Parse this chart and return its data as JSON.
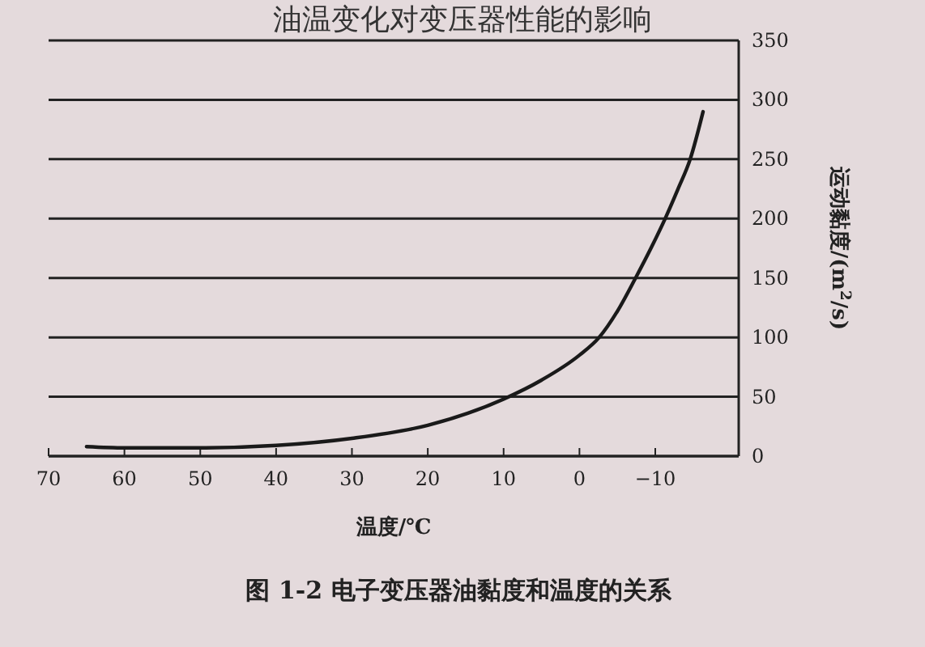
{
  "chart_data": {
    "type": "line",
    "title": "油温变化对变压器性能的影响",
    "xlabel": "温度/℃",
    "ylabel": "运动黏度/(m$^{2}$/s)",
    "annotations": [
      "图 1-2 电子变压器油黏度和温度的关系"
    ],
    "x": [
      65,
      60,
      50,
      40,
      30,
      20,
      10,
      5,
      0,
      -2.6,
      -5,
      -7.4,
      -9.5,
      -11.3,
      -13,
      -14.6,
      -16.3
    ],
    "series": [
      {
        "color": "#1a1a1a",
        "values": [
          8,
          7,
          7,
          9,
          15,
          26,
          48,
          64,
          85,
          100,
          122,
          150,
          176,
          200,
          225,
          250,
          290
        ]
      }
    ],
    "xlim": [
      70,
      -21
    ],
    "xticks": [
      70,
      60,
      50,
      40,
      30,
      20,
      10,
      0,
      {
        "value": -10,
        "label": "−10"
      }
    ],
    "ylim": [
      0,
      350
    ],
    "yticks": [
      0,
      50,
      100,
      150,
      200,
      250,
      300,
      350
    ],
    "grid": "y",
    "marker": "none",
    "line_style": "solid"
  }
}
